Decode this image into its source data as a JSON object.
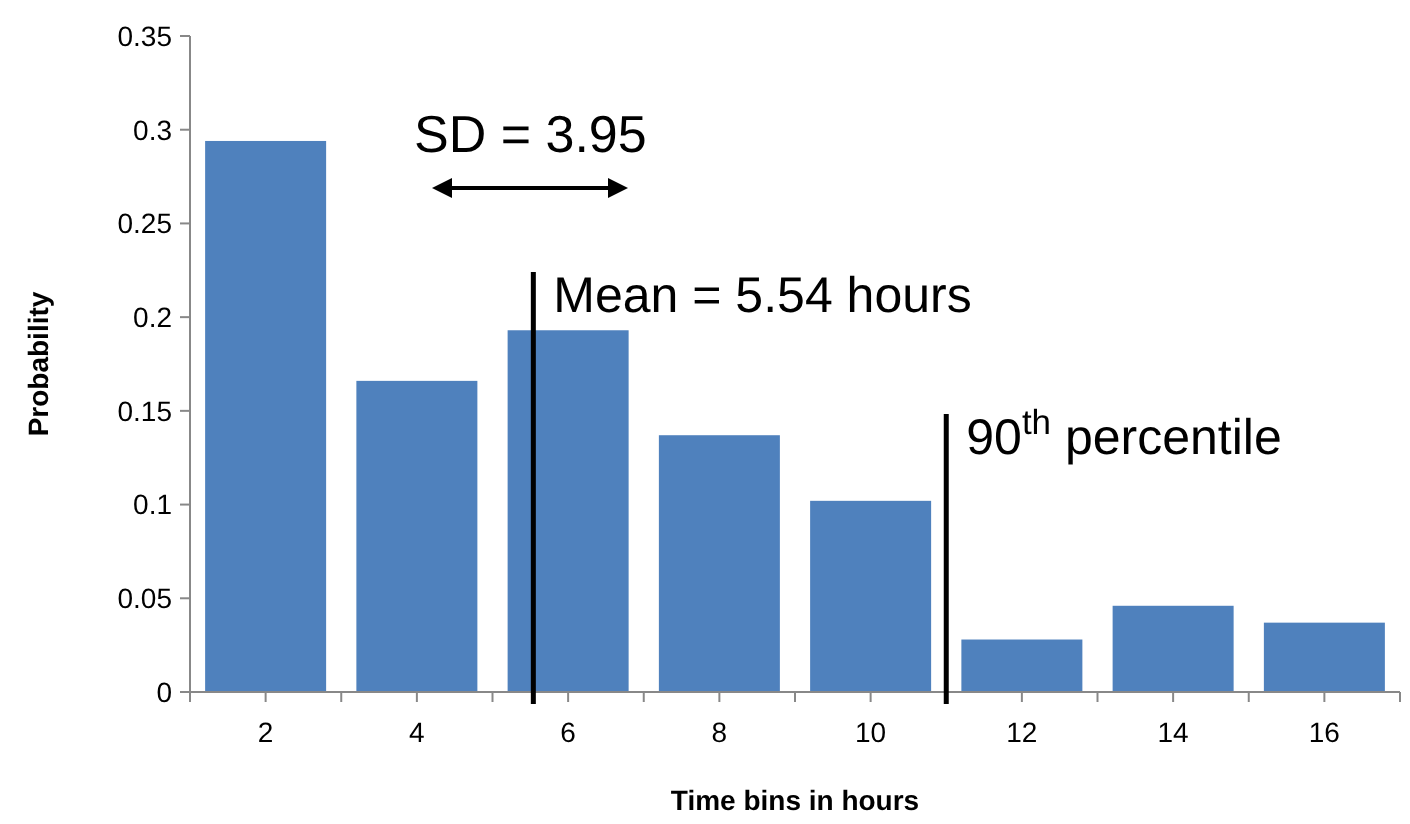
{
  "chart_data": {
    "type": "bar",
    "xlabel": "Time bins in hours",
    "ylabel": "Probability",
    "x": [
      2,
      4,
      6,
      8,
      10,
      12,
      14,
      16
    ],
    "values": [
      0.294,
      0.166,
      0.193,
      0.137,
      0.102,
      0.028,
      0.046,
      0.037
    ],
    "color": "#4f81bd",
    "xlim": [
      1,
      17
    ],
    "xticks": [
      {
        "value": 1,
        "label": null
      },
      {
        "value": 2,
        "label": "2"
      },
      {
        "value": 3,
        "label": null
      },
      {
        "value": 4,
        "label": "4"
      },
      {
        "value": 5,
        "label": null
      },
      {
        "value": 6,
        "label": "6"
      },
      {
        "value": 7,
        "label": null
      },
      {
        "value": 8,
        "label": "8"
      },
      {
        "value": 9,
        "label": null
      },
      {
        "value": 10,
        "label": "10"
      },
      {
        "value": 11,
        "label": null
      },
      {
        "value": 12,
        "label": "12"
      },
      {
        "value": 13,
        "label": null
      },
      {
        "value": 14,
        "label": "14"
      },
      {
        "value": 15,
        "label": null
      },
      {
        "value": 16,
        "label": "16"
      },
      {
        "value": 17,
        "label": null
      }
    ],
    "ylim": [
      0,
      0.35
    ],
    "yticks": [
      0,
      0.05,
      0.1,
      0.15,
      0.2,
      0.25,
      0.3,
      0.35
    ],
    "grid": false,
    "ref_lines": [
      {
        "axis": "x",
        "value": 5.54,
        "label": "Mean = 5.54 hours",
        "color": "#000000"
      },
      {
        "axis": "x",
        "value": 11,
        "label": "90$^{th}$ percentile",
        "color": "#000000"
      }
    ],
    "annotations": [
      "SD = 3.95"
    ]
  }
}
